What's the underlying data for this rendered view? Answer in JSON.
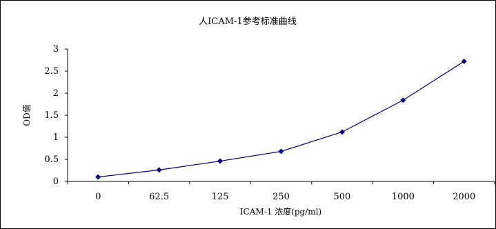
{
  "chart_data": {
    "type": "line",
    "title": "人ICAM-1参考标准曲线",
    "xlabel": "ICAM-1 浓度(pg/ml)",
    "ylabel": "OD值",
    "categories": [
      "0",
      "62.5",
      "125",
      "250",
      "500",
      "1000",
      "2000"
    ],
    "series": [
      {
        "values": [
          0.1,
          0.26,
          0.46,
          0.68,
          1.12,
          1.84,
          2.72
        ]
      }
    ],
    "ylim": [
      0,
      3
    ],
    "yticks": [
      "0",
      "0.5",
      "1",
      "1.5",
      "2",
      "2.5",
      "3"
    ],
    "grid": false,
    "legend": "none",
    "colors": {
      "line": "#000080",
      "marker": "#000080",
      "axis": "#000000"
    }
  }
}
